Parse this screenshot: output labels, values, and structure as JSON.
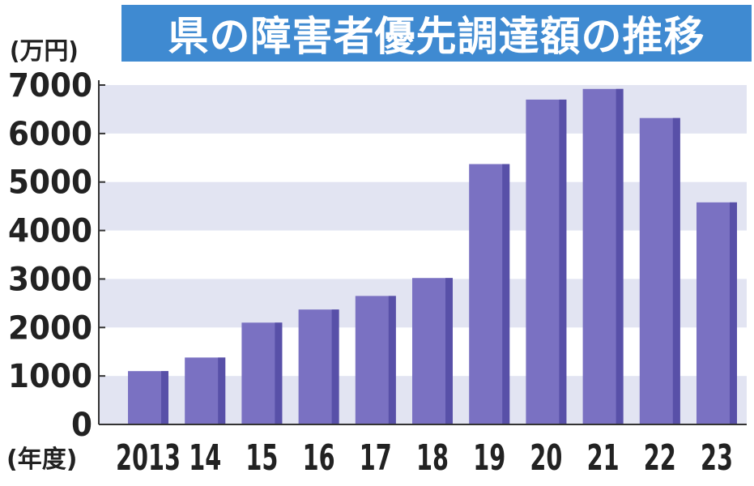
{
  "chart_data": {
    "type": "bar",
    "title": "県の障害者優先調達額の推移",
    "ylabel": "(万円)",
    "xlabel": "(年度)",
    "categories": [
      "2013",
      "14",
      "15",
      "16",
      "17",
      "18",
      "19",
      "20",
      "21",
      "22",
      "23"
    ],
    "values": [
      1100,
      1380,
      2100,
      2370,
      2650,
      3020,
      5370,
      6700,
      6920,
      6320,
      4580
    ],
    "yticks": [
      "0",
      "1000",
      "2000",
      "3000",
      "4000",
      "5000",
      "6000",
      "7000"
    ],
    "ylim": [
      0,
      7000
    ],
    "grid": "alternating horizontal bands",
    "colors": {
      "bar": "#7a71c2",
      "bar_edge": "#5850a8",
      "band": "#e2e4f2",
      "title_bg": "#3f8ad1",
      "title_text": "#ffffff"
    }
  }
}
